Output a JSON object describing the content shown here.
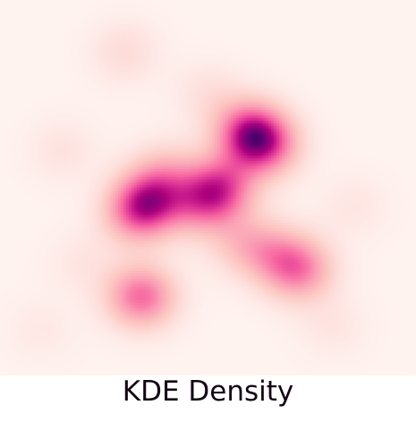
{
  "chart_data": {
    "type": "heatmap",
    "title": "KDE Density",
    "xlabel": "",
    "ylabel": "",
    "grid": false,
    "legend": "none",
    "colormap": "RdPu",
    "colors": {
      "low": "#fff7f3",
      "mid": "#f768a1",
      "high": "#49006a"
    },
    "x_range": [
      0,
      1
    ],
    "y_range": [
      0,
      1
    ],
    "bandwidth": 0.06,
    "points": [
      {
        "x": 0.6,
        "y": 0.35,
        "w": 1.0
      },
      {
        "x": 0.64,
        "y": 0.39,
        "w": 0.8
      },
      {
        "x": 0.53,
        "y": 0.5,
        "w": 0.95
      },
      {
        "x": 0.48,
        "y": 0.55,
        "w": 0.55
      },
      {
        "x": 0.36,
        "y": 0.53,
        "w": 0.75
      },
      {
        "x": 0.33,
        "y": 0.57,
        "w": 0.7
      },
      {
        "x": 0.4,
        "y": 0.46,
        "w": 0.4
      },
      {
        "x": 0.59,
        "y": 0.65,
        "w": 0.45
      },
      {
        "x": 0.72,
        "y": 0.72,
        "w": 0.75
      },
      {
        "x": 0.67,
        "y": 0.68,
        "w": 0.4
      },
      {
        "x": 0.34,
        "y": 0.79,
        "w": 0.95
      },
      {
        "x": 0.3,
        "y": 0.14,
        "w": 0.25
      },
      {
        "x": 0.15,
        "y": 0.4,
        "w": 0.18
      },
      {
        "x": 0.85,
        "y": 0.55,
        "w": 0.15
      },
      {
        "x": 0.8,
        "y": 0.87,
        "w": 0.15
      },
      {
        "x": 0.1,
        "y": 0.88,
        "w": 0.12
      },
      {
        "x": 0.5,
        "y": 0.25,
        "w": 0.2
      },
      {
        "x": 0.2,
        "y": 0.7,
        "w": 0.15
      }
    ]
  }
}
